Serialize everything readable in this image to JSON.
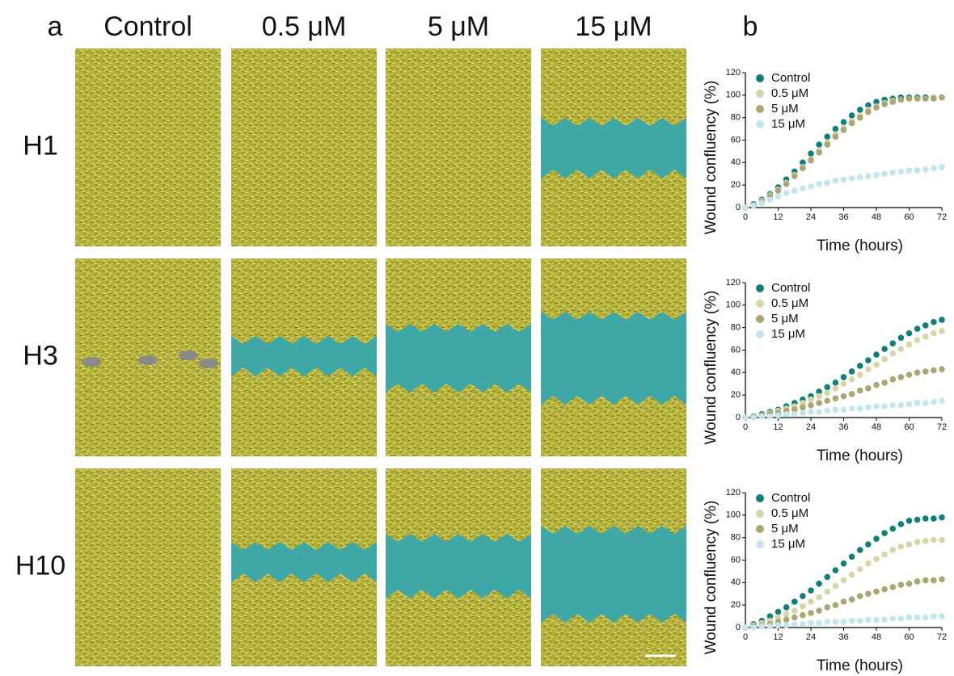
{
  "figure": {
    "panel_a": "a",
    "panel_b": "b",
    "columns": [
      "Control",
      "0.5 μM",
      "5 μM",
      "15 μM"
    ],
    "rows": [
      "H1",
      "H3",
      "H10"
    ]
  },
  "chart_data": [
    {
      "type": "scatter",
      "x_label": "Time (hours)",
      "y_label": "Wound confluency (%)",
      "xlim": [
        0,
        72
      ],
      "ylim": [
        0,
        120
      ],
      "xticks": [
        0,
        12,
        24,
        36,
        48,
        60,
        72
      ],
      "yticks": [
        0,
        20,
        40,
        60,
        80,
        100,
        120
      ],
      "x": [
        0,
        3,
        6,
        9,
        12,
        15,
        18,
        21,
        24,
        27,
        30,
        33,
        36,
        39,
        42,
        45,
        48,
        51,
        54,
        57,
        60,
        63,
        66,
        69,
        72
      ],
      "series": [
        {
          "name": "Control",
          "color": "#0f7f7a",
          "values": [
            0,
            3,
            7,
            12,
            18,
            25,
            32,
            40,
            48,
            56,
            63,
            70,
            76,
            82,
            87,
            91,
            94,
            96,
            97,
            98,
            98,
            98,
            98,
            98,
            98
          ]
        },
        {
          "name": "0.5 μM",
          "color": "#d7d4a6",
          "values": [
            0,
            2,
            6,
            11,
            16,
            22,
            29,
            36,
            43,
            51,
            58,
            65,
            71,
            77,
            82,
            87,
            90,
            93,
            95,
            96,
            97,
            97,
            97,
            98,
            98
          ]
        },
        {
          "name": "5 μM",
          "color": "#aaa673",
          "values": [
            0,
            2,
            5,
            10,
            15,
            21,
            28,
            35,
            42,
            49,
            56,
            63,
            69,
            75,
            80,
            85,
            89,
            92,
            94,
            96,
            97,
            97,
            97,
            97,
            98
          ]
        },
        {
          "name": "15 μM",
          "color": "#c3e5ec",
          "values": [
            0,
            2,
            4,
            7,
            10,
            13,
            15,
            17,
            19,
            21,
            22,
            24,
            25,
            26,
            27,
            28,
            29,
            30,
            31,
            32,
            33,
            33,
            34,
            35,
            36
          ]
        }
      ]
    },
    {
      "type": "scatter",
      "x_label": "Time (hours)",
      "y_label": "Wound confluency (%)",
      "xlim": [
        0,
        72
      ],
      "ylim": [
        0,
        120
      ],
      "xticks": [
        0,
        12,
        24,
        36,
        48,
        60,
        72
      ],
      "yticks": [
        0,
        20,
        40,
        60,
        80,
        100,
        120
      ],
      "x": [
        0,
        3,
        6,
        9,
        12,
        15,
        18,
        21,
        24,
        27,
        30,
        33,
        36,
        39,
        42,
        45,
        48,
        51,
        54,
        57,
        60,
        63,
        66,
        69,
        72
      ],
      "series": [
        {
          "name": "Control",
          "color": "#0f7f7a",
          "values": [
            0,
            1,
            3,
            5,
            7,
            10,
            13,
            16,
            19,
            23,
            27,
            31,
            36,
            41,
            46,
            51,
            56,
            61,
            66,
            71,
            75,
            79,
            82,
            85,
            87
          ]
        },
        {
          "name": "0.5 μM",
          "color": "#d7d4a6",
          "values": [
            0,
            1,
            2,
            4,
            6,
            8,
            10,
            13,
            16,
            19,
            22,
            26,
            30,
            34,
            38,
            43,
            47,
            52,
            57,
            61,
            65,
            69,
            72,
            75,
            77
          ]
        },
        {
          "name": "5 μM",
          "color": "#aaa673",
          "values": [
            0,
            1,
            2,
            3,
            4,
            6,
            7,
            9,
            11,
            13,
            15,
            17,
            19,
            21,
            24,
            26,
            29,
            31,
            34,
            36,
            38,
            40,
            41,
            42,
            43
          ]
        },
        {
          "name": "15 μM",
          "color": "#c3e5ec",
          "values": [
            0,
            0,
            1,
            1,
            2,
            3,
            3,
            4,
            5,
            5,
            6,
            7,
            7,
            8,
            8,
            9,
            10,
            10,
            11,
            11,
            12,
            13,
            13,
            14,
            15
          ]
        }
      ]
    },
    {
      "type": "scatter",
      "x_label": "Time (hours)",
      "y_label": "Wound confluency (%)",
      "xlim": [
        0,
        72
      ],
      "ylim": [
        0,
        120
      ],
      "xticks": [
        0,
        12,
        24,
        36,
        48,
        60,
        72
      ],
      "yticks": [
        0,
        20,
        40,
        60,
        80,
        100,
        120
      ],
      "x": [
        0,
        3,
        6,
        9,
        12,
        15,
        18,
        21,
        24,
        27,
        30,
        33,
        36,
        39,
        42,
        45,
        48,
        51,
        54,
        57,
        60,
        63,
        66,
        69,
        72
      ],
      "series": [
        {
          "name": "Control",
          "color": "#0f7f7a",
          "values": [
            0,
            3,
            6,
            10,
            14,
            18,
            23,
            28,
            33,
            39,
            45,
            51,
            57,
            63,
            69,
            74,
            79,
            84,
            88,
            92,
            95,
            96,
            97,
            97,
            98
          ]
        },
        {
          "name": "0.5 μM",
          "color": "#d7d4a6",
          "values": [
            0,
            2,
            4,
            6,
            9,
            12,
            15,
            19,
            23,
            27,
            32,
            37,
            42,
            47,
            52,
            57,
            61,
            65,
            69,
            72,
            74,
            76,
            77,
            78,
            78
          ]
        },
        {
          "name": "5 μM",
          "color": "#aaa673",
          "values": [
            0,
            1,
            2,
            3,
            5,
            7,
            9,
            11,
            13,
            15,
            18,
            20,
            23,
            25,
            28,
            30,
            32,
            34,
            36,
            38,
            39,
            41,
            42,
            42,
            43
          ]
        },
        {
          "name": "15 μM",
          "color": "#c3e5ec",
          "values": [
            0,
            0,
            1,
            1,
            2,
            2,
            3,
            3,
            4,
            4,
            5,
            5,
            5,
            6,
            6,
            7,
            7,
            7,
            8,
            8,
            9,
            9,
            9,
            10,
            10
          ]
        }
      ]
    }
  ]
}
